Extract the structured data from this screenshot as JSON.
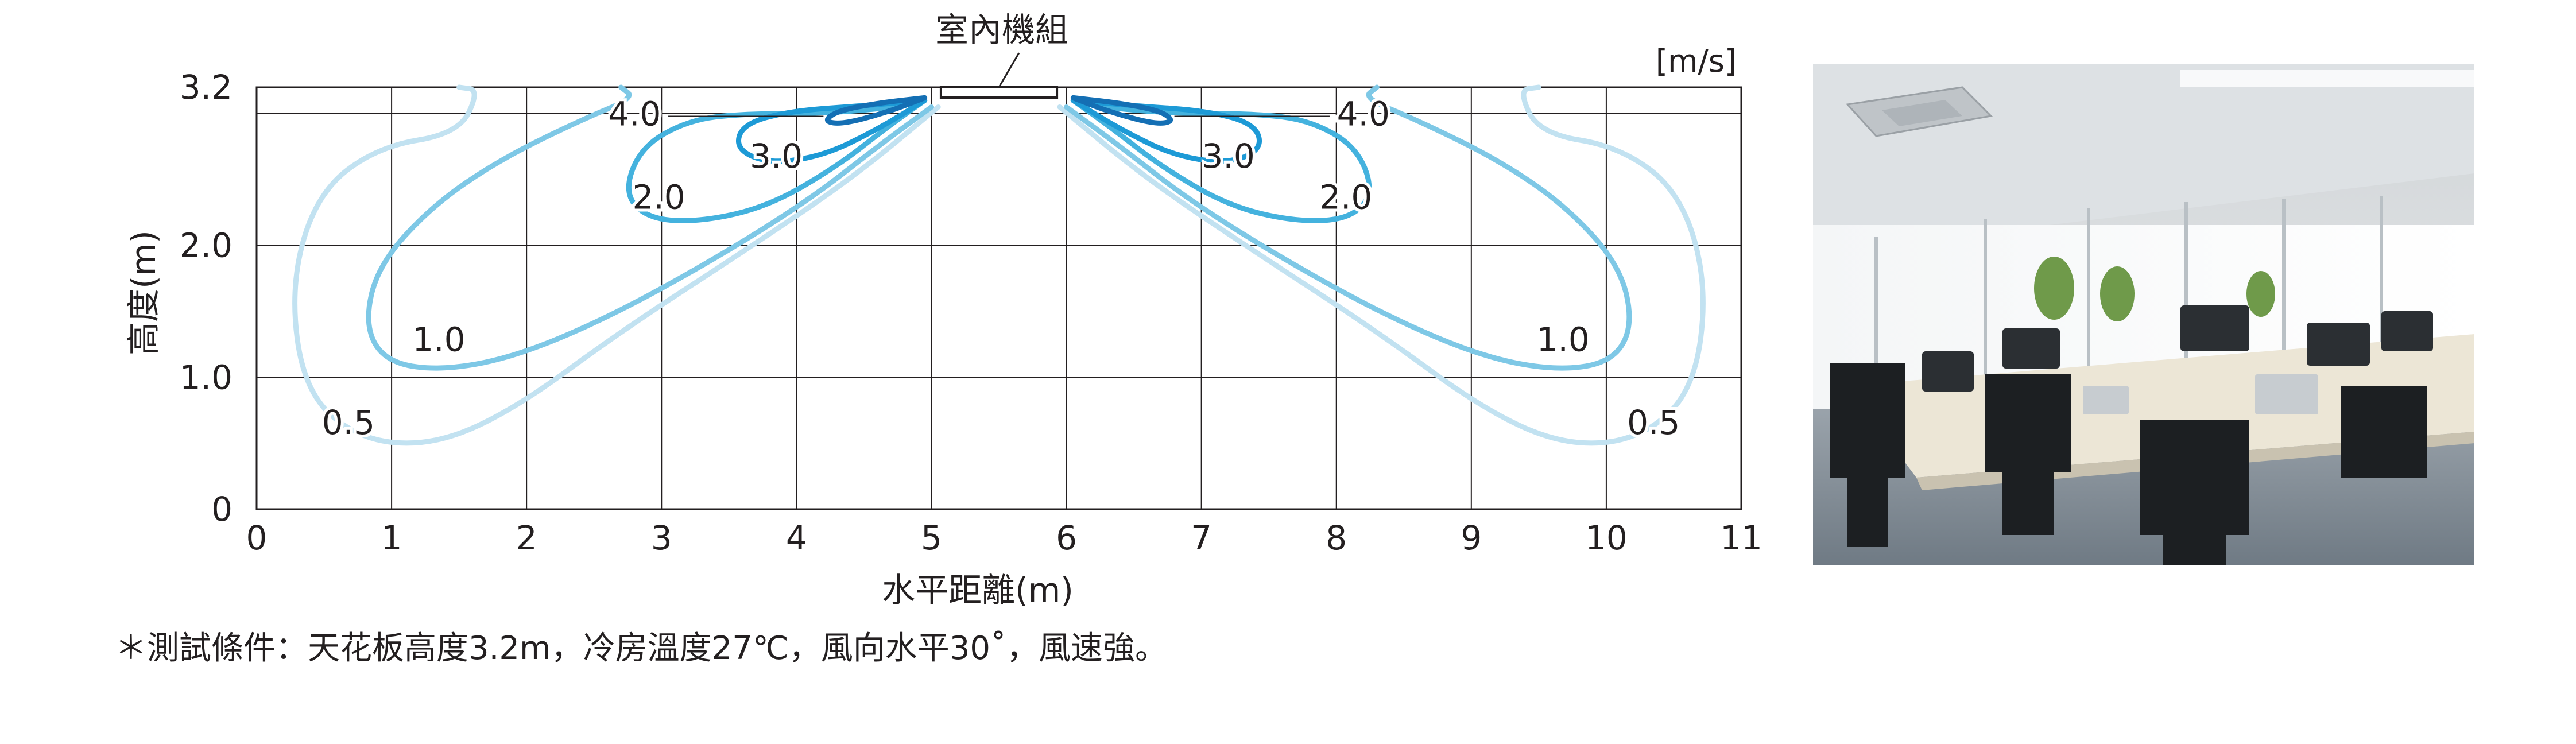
{
  "chart_data": {
    "type": "contour",
    "title": "",
    "unit_label": "[m/s]",
    "device_label": "室內機組",
    "xlabel": "水平距離(m)",
    "ylabel": "高度(m)",
    "xlim": [
      0,
      11
    ],
    "ylim": [
      0,
      3.2
    ],
    "x_ticks": [
      {
        "value": 0,
        "label": "0"
      },
      {
        "value": 1,
        "label": "1"
      },
      {
        "value": 2,
        "label": "2"
      },
      {
        "value": 3,
        "label": "3"
      },
      {
        "value": 4,
        "label": "4"
      },
      {
        "value": 5,
        "label": "5"
      },
      {
        "value": 6,
        "label": "6"
      },
      {
        "value": 7,
        "label": "7"
      },
      {
        "value": 8,
        "label": "8"
      },
      {
        "value": 9,
        "label": "9"
      },
      {
        "value": 10,
        "label": "10"
      },
      {
        "value": 11,
        "label": "11"
      }
    ],
    "y_ticks": [
      {
        "value": 0,
        "label": "0"
      },
      {
        "value": 1.0,
        "label": "1.0"
      },
      {
        "value": 2.0,
        "label": "2.0"
      },
      {
        "value": 3.2,
        "label": "3.2"
      }
    ],
    "grid": true,
    "series": [
      {
        "name": "0.5",
        "color": "#c2e2f1",
        "label_positions": [
          {
            "x": 0.68,
            "y": 0.64
          },
          {
            "x": 10.35,
            "y": 0.64
          }
        ],
        "points": [
          [
            5.05,
            3.05
          ],
          [
            4.4,
            2.5
          ],
          [
            3.6,
            1.95
          ],
          [
            2.7,
            1.35
          ],
          [
            1.9,
            0.75
          ],
          [
            1.3,
            0.48
          ],
          [
            0.75,
            0.53
          ],
          [
            0.35,
            0.9
          ],
          [
            0.25,
            1.7
          ],
          [
            0.45,
            2.4
          ],
          [
            0.9,
            2.75
          ],
          [
            1.5,
            2.85
          ],
          [
            1.65,
            3.18
          ],
          [
            1.5,
            3.2
          ]
        ],
        "mirror": true
      },
      {
        "name": "1.0",
        "color": "#7ec8e6",
        "label_positions": [
          {
            "x": 1.35,
            "y": 1.27
          },
          {
            "x": 9.68,
            "y": 1.27
          }
        ],
        "points": [
          [
            5.0,
            3.05
          ],
          [
            4.6,
            2.75
          ],
          [
            4.1,
            2.35
          ],
          [
            3.4,
            1.9
          ],
          [
            2.6,
            1.45
          ],
          [
            1.9,
            1.15
          ],
          [
            1.35,
            1.05
          ],
          [
            0.95,
            1.12
          ],
          [
            0.8,
            1.4
          ],
          [
            0.9,
            1.85
          ],
          [
            1.3,
            2.3
          ],
          [
            1.8,
            2.65
          ],
          [
            2.4,
            2.95
          ],
          [
            2.8,
            3.12
          ],
          [
            2.7,
            3.2
          ]
        ],
        "mirror": true
      },
      {
        "name": "2.0",
        "color": "#44b2de",
        "label_positions": [
          {
            "x": 2.98,
            "y": 2.35
          },
          {
            "x": 8.07,
            "y": 2.35
          }
        ],
        "points": [
          [
            4.95,
            3.1
          ],
          [
            4.65,
            2.88
          ],
          [
            4.3,
            2.6
          ],
          [
            3.8,
            2.3
          ],
          [
            3.3,
            2.18
          ],
          [
            2.9,
            2.2
          ],
          [
            2.72,
            2.4
          ],
          [
            2.85,
            2.75
          ],
          [
            3.2,
            2.95
          ],
          [
            3.6,
            3.0
          ],
          [
            4.2,
            3.0
          ],
          [
            4.75,
            3.05
          ],
          [
            4.95,
            3.1
          ]
        ],
        "mirror": true
      },
      {
        "name": "3.0",
        "color": "#1d9ad6",
        "label_positions": [
          {
            "x": 3.85,
            "y": 2.66
          },
          {
            "x": 7.2,
            "y": 2.66
          }
        ],
        "points": [
          [
            4.95,
            3.1
          ],
          [
            4.6,
            2.88
          ],
          [
            4.2,
            2.68
          ],
          [
            3.8,
            2.62
          ],
          [
            3.55,
            2.73
          ],
          [
            3.6,
            2.92
          ],
          [
            3.95,
            3.02
          ],
          [
            4.5,
            3.06
          ],
          [
            4.95,
            3.1
          ]
        ],
        "mirror": true
      },
      {
        "name": "4.0",
        "color": "#146fb4",
        "label_positions": [
          {
            "x": 2.8,
            "y": 2.98
          },
          {
            "x": 8.2,
            "y": 2.98
          }
        ],
        "points": [
          [
            4.95,
            3.12
          ],
          [
            4.7,
            3.02
          ],
          [
            4.35,
            2.92
          ],
          [
            4.2,
            2.94
          ],
          [
            4.3,
            3.02
          ],
          [
            4.6,
            3.08
          ],
          [
            4.95,
            3.12
          ]
        ],
        "mirror": true
      }
    ],
    "legend": "none"
  },
  "footnote": "＊測試條件：天花板高度3.2m，冷房溫度27℃，風向水平30˚，風速強。",
  "photo": {
    "description_icon": "office-photo"
  }
}
